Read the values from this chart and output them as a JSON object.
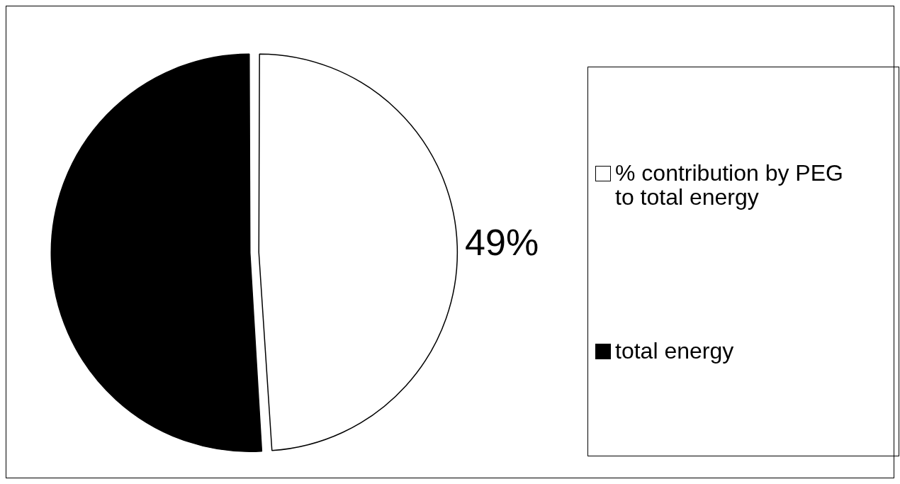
{
  "chart_data": {
    "type": "pie",
    "categories": [
      "% contribution by PEG to total energy",
      "total energy"
    ],
    "values": [
      49,
      51
    ],
    "colors": [
      "#ffffff",
      "#000000"
    ],
    "value_labels": [
      "49%",
      null
    ],
    "legend": "right"
  }
}
